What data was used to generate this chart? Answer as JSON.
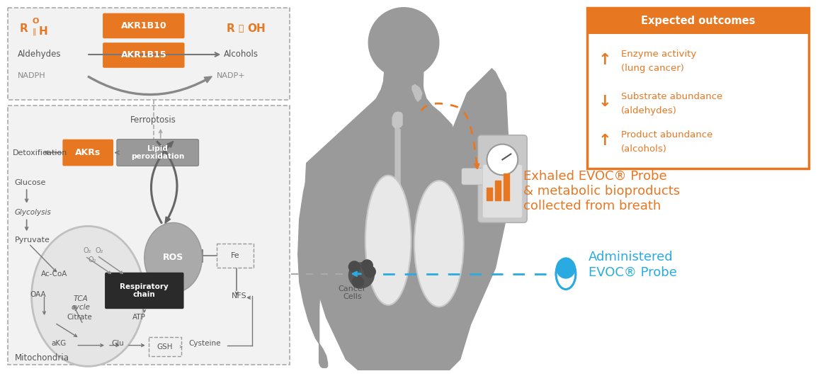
{
  "bg_color": "#ffffff",
  "orange": "#E87722",
  "dark_gray": "#555555",
  "mid_gray": "#888888",
  "body_gray": "#9a9a9a",
  "light_body": "#c8c8c8",
  "cyan": "#29ABE2",
  "box_bg": "#f2f2f2",
  "top_box": {
    "label_aldehyde": "Aldehydes",
    "label_alcohol": "Alcohols",
    "label_nadph": "NADPH",
    "label_nadp": "NADP+",
    "akr1b10": "AKR1B10",
    "akr1b15": "AKR1B15"
  },
  "bottom_labels": {
    "ferroptosis": "Ferroptosis",
    "detox": "Detoxification",
    "akrs": "AKRs",
    "lipid_perox": "Lipid\nperoxidation",
    "glucose": "Glucose",
    "glycolysis": "Glycolysis",
    "pyruvate": "Pyruvate",
    "ros": "ROS",
    "fe": "Fe",
    "nfs": "NFS",
    "resp_chain": "Respiratory\nchain",
    "atp": "ATP",
    "ac_coa": "Ac-CoA",
    "oaa": "OAA",
    "citrate": "Citrate",
    "akg": "aKG",
    "glu": "Glu",
    "gsh": "GSH",
    "cysteine": "Cysteine",
    "tca": "TCA\ncycle",
    "mitochondria": "Mitochondria",
    "o2a": "O₂",
    "o2b": "O₂",
    "o2c": "O₂"
  },
  "expected_outcomes": {
    "title": "Expected outcomes",
    "items": [
      {
        "arrow": "↑",
        "line1": "Enzyme activity",
        "line2": "(lung cancer)"
      },
      {
        "arrow": "↓",
        "line1": "Substrate abundance",
        "line2": "(aldehydes)"
      },
      {
        "arrow": "↑",
        "line1": "Product abundance",
        "line2": "(alcohols)"
      }
    ]
  },
  "right_labels": {
    "exhaled": "Exhaled EVOC® Probe\n& metabolic bioproducts\ncollected from breath",
    "administered": "Administered\nEVOC® Probe",
    "cancer_cells": "Cancer\nCells"
  }
}
